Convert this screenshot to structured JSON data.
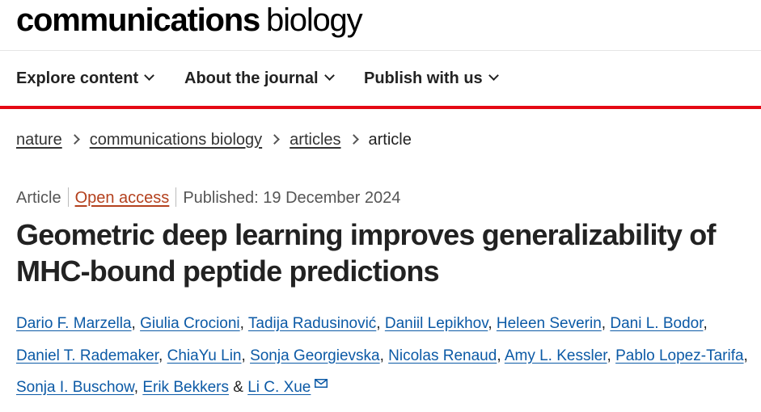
{
  "header": {
    "logo_bold": "communications",
    "logo_light": "biology"
  },
  "nav": {
    "items": [
      {
        "label": "Explore content"
      },
      {
        "label": "About the journal"
      },
      {
        "label": "Publish with us"
      }
    ]
  },
  "breadcrumb": [
    {
      "label": "nature"
    },
    {
      "label": "communications biology"
    },
    {
      "label": "articles"
    },
    {
      "label": "article"
    }
  ],
  "article": {
    "type": "Article",
    "access": "Open access",
    "published": "Published: 19 December 2024",
    "title": "Geometric deep learning improves generalizability of MHC-bound peptide predictions",
    "authors": [
      "Dario F. Marzella",
      "Giulia Crocioni",
      "Tadija Radusinović",
      "Daniil Lepikhov",
      "Heleen Severin",
      "Dani L. Bodor",
      "Daniel T. Rademaker",
      "ChiaYu Lin",
      "Sonja Georgievska",
      "Nicolas Renaud",
      "Amy L. Kessler",
      "Pablo Lopez-Tarifa",
      "Sonja I. Buschow",
      "Erik Bekkers",
      "Li C. Xue"
    ],
    "author_separator": "&",
    "colors": {
      "accent_red": "#e50914",
      "link_blue": "#0c5aa6",
      "open_access": "#b4411e"
    }
  }
}
